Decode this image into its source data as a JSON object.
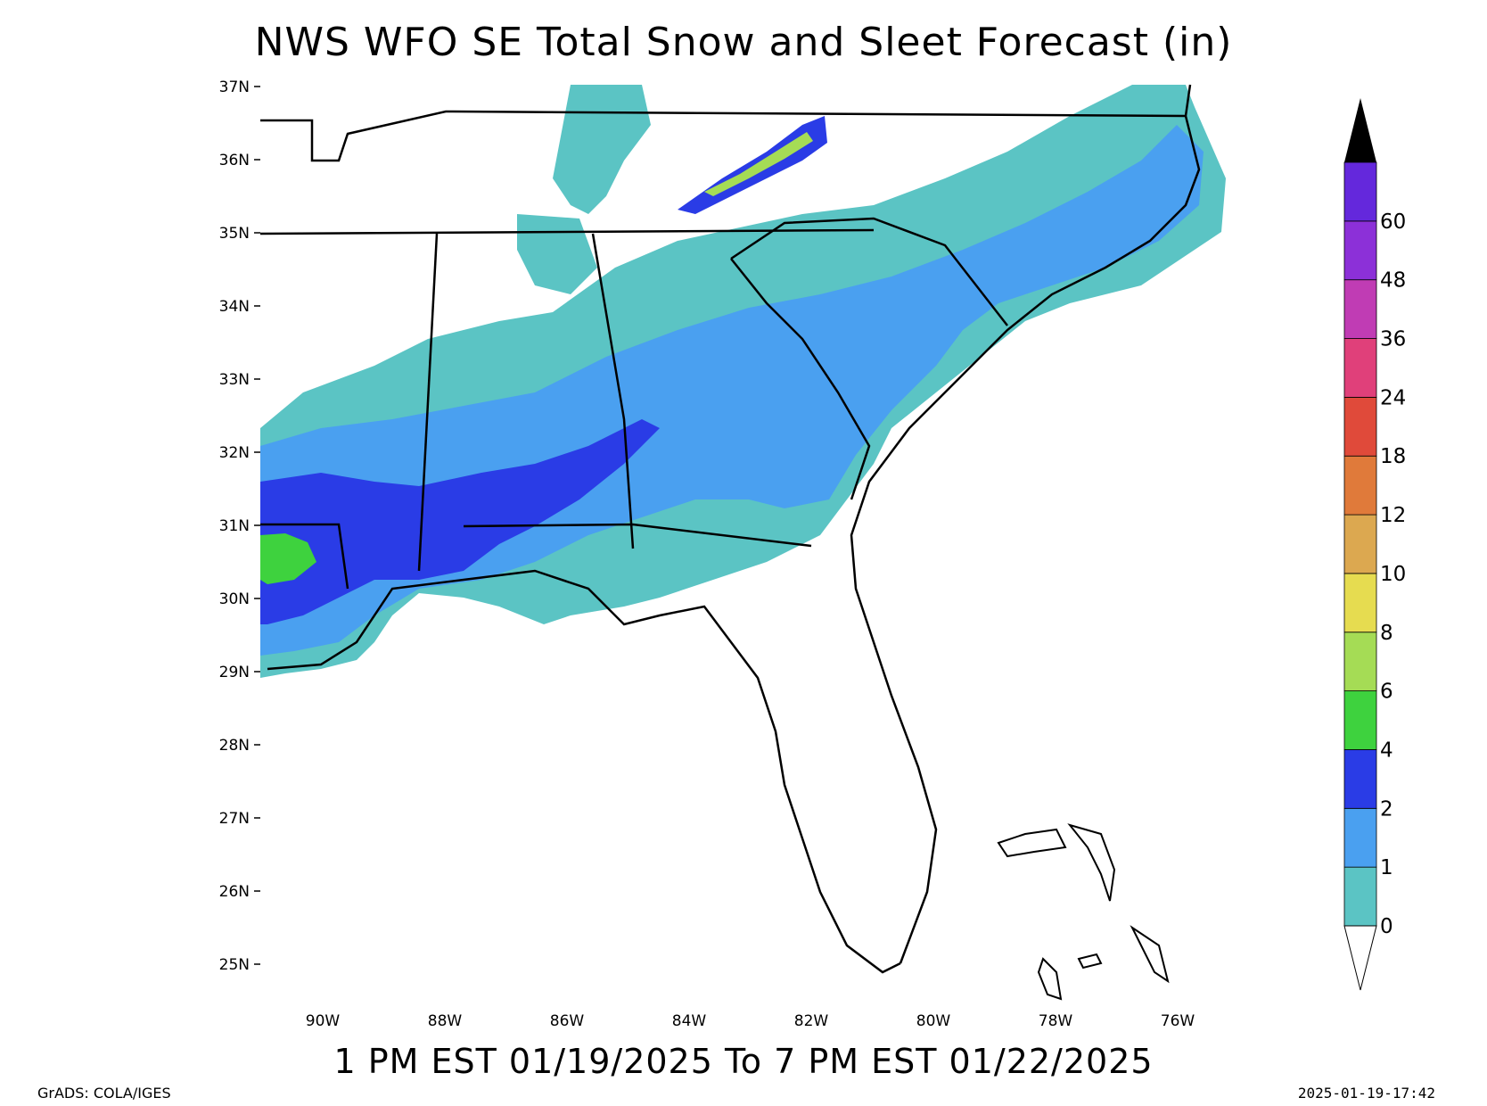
{
  "title": "NWS WFO SE Total Snow and Sleet Forecast (in)",
  "valid_period": "1 PM EST 01/19/2025 To 7 PM EST 01/22/2025",
  "credit": "GrADS: COLA/IGES",
  "timestamp": "2025-01-19-17:42",
  "axes": {
    "lat_ticks": [
      "37N",
      "36N",
      "35N",
      "34N",
      "33N",
      "32N",
      "31N",
      "30N",
      "29N",
      "28N",
      "27N",
      "26N",
      "25N"
    ],
    "lon_ticks": [
      "90W",
      "88W",
      "86W",
      "84W",
      "82W",
      "80W",
      "78W",
      "76W"
    ]
  },
  "colorbar": {
    "labels": [
      "0",
      "1",
      "2",
      "4",
      "6",
      "8",
      "10",
      "12",
      "18",
      "24",
      "36",
      "48",
      "60"
    ],
    "colors": [
      "#5bc4c4",
      "#4aa0f0",
      "#2a3ce6",
      "#3ed23e",
      "#a5dc55",
      "#e6dc50",
      "#dca850",
      "#e07a3a",
      "#e04a3a",
      "#e0407a",
      "#c03cb4",
      "#8c30d8",
      "#6428dc"
    ],
    "over_color": "#000000",
    "under_color": "#ffffff"
  },
  "legend": {
    "bands": [
      {
        "range": "0-1",
        "color": "#5bc4c4"
      },
      {
        "range": "1-2",
        "color": "#4aa0f0"
      },
      {
        "range": "2-4",
        "color": "#2a3ce6"
      },
      {
        "range": "4-6",
        "color": "#3ed23e"
      },
      {
        "range": "6-8",
        "color": "#a5dc55"
      }
    ]
  }
}
